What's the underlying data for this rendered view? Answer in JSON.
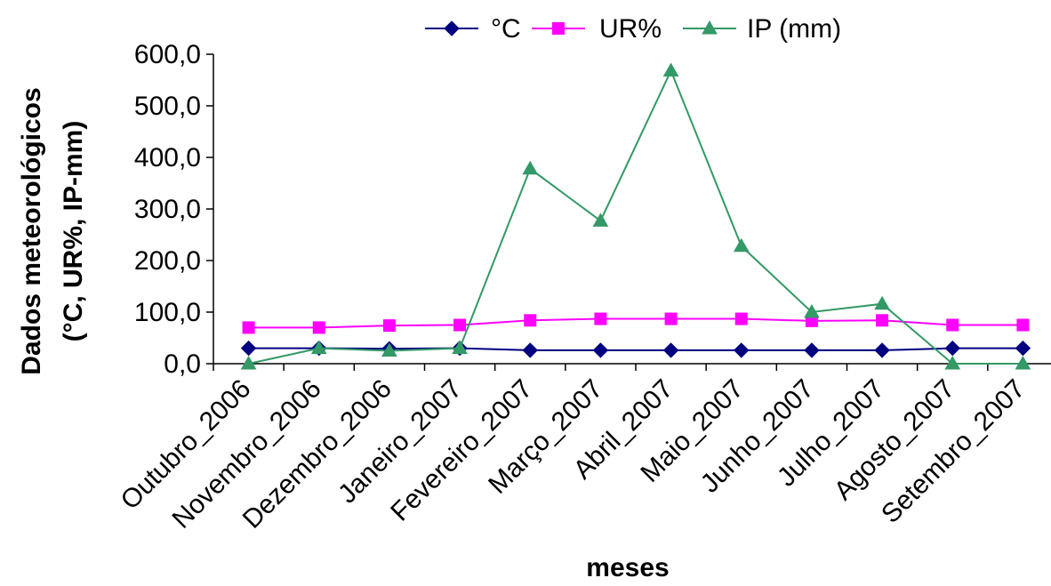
{
  "chart_data": {
    "type": "line",
    "categories": [
      "Outubro_2006",
      "Novembro_2006",
      "Dezembro_2006",
      "Janeiro_2007",
      "Fevereiro_2007",
      "Março_2007",
      "Abril_2007",
      "Maio_2007",
      "Junho_2007",
      "Julho_2007",
      "Agosto_2007",
      "Setembro_2007"
    ],
    "series": [
      {
        "name": "°C",
        "marker": "diamond",
        "color": "#000080",
        "values": [
          30,
          30,
          29,
          30,
          26,
          26,
          26,
          26,
          26,
          26,
          30,
          30
        ]
      },
      {
        "name": "UR%",
        "marker": "square",
        "color": "#ff00ff",
        "values": [
          70,
          70,
          74,
          75,
          84,
          87,
          87,
          87,
          83,
          84,
          75,
          75
        ]
      },
      {
        "name": "IP (mm)",
        "marker": "triangle",
        "color": "#339966",
        "values": [
          0,
          30,
          25,
          30,
          378,
          277,
          568,
          228,
          100,
          116,
          0,
          0
        ]
      }
    ],
    "xlabel": "meses",
    "ylabel_lines": [
      "Dados meteorológicos",
      "(°C, UR%, IP-mm)"
    ],
    "ylim": [
      0,
      600
    ],
    "yticks": [
      "0,0",
      "100,0",
      "200,0",
      "300,0",
      "400,0",
      "500,0",
      "600,0"
    ],
    "grid": false,
    "legend_position": "top"
  }
}
